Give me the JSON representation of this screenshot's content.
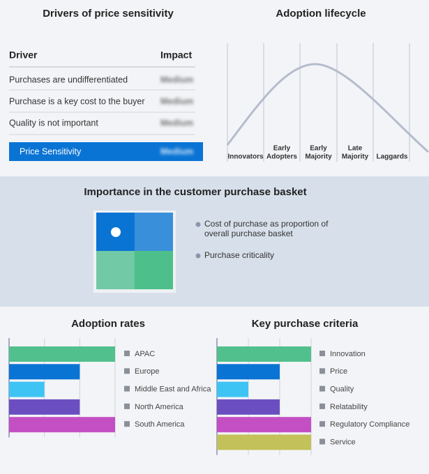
{
  "drivers": {
    "title": "Drivers of price sensitivity",
    "header": [
      "Driver",
      "Impact"
    ],
    "rows": [
      [
        "Purchases are undifferentiated",
        "Medium"
      ],
      [
        "Purchase is a key cost to the buyer",
        "Medium"
      ],
      [
        "Quality is not important",
        "Medium"
      ]
    ],
    "summary": [
      "Price Sensitivity",
      "Medium"
    ]
  },
  "lifecycle": {
    "title": "Adoption lifecycle",
    "stages": [
      [
        "Innovators"
      ],
      [
        "Early",
        "Adopters"
      ],
      [
        "Early",
        "Majority"
      ],
      [
        "Late",
        "Majority"
      ],
      [
        "Laggards"
      ]
    ]
  },
  "basket": {
    "title": "Importance in the customer purchase basket",
    "legend": [
      [
        "Cost of purchase as proportion of",
        "overall purchase basket"
      ],
      [
        "Purchase criticality"
      ]
    ]
  },
  "chart_data": [
    {
      "type": "bar",
      "title": "Adoption rates",
      "categories": [
        "APAC",
        "Europe",
        "Middle East and Africa",
        "North America",
        "South America"
      ],
      "values": [
        3,
        2,
        1,
        2,
        3
      ],
      "colors": [
        "#52c08c",
        "#0a74d4",
        "#3ec4f4",
        "#6b4fc0",
        "#c44fc4"
      ],
      "xlim": [
        0,
        3
      ],
      "xticks": [
        0,
        1,
        2,
        3
      ],
      "grid": true
    },
    {
      "type": "bar",
      "title": "Key purchase criteria",
      "categories": [
        "Innovation",
        "Price",
        "Quality",
        "Relatability",
        "Regulatory Compliance",
        "Service"
      ],
      "values": [
        3,
        2,
        1,
        2,
        3,
        3
      ],
      "colors": [
        "#52c08c",
        "#0a74d4",
        "#3ec4f4",
        "#6b4fc0",
        "#c44fc4",
        "#c2c15a"
      ],
      "xlim": [
        0,
        3
      ],
      "xticks": [
        0,
        1,
        2,
        3
      ],
      "grid": true
    }
  ]
}
